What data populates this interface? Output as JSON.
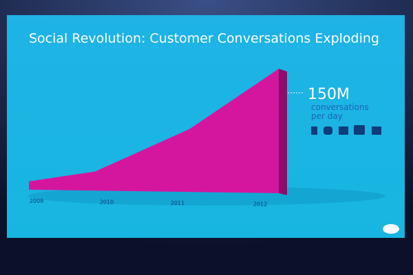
{
  "chart_data": {
    "type": "area",
    "title": "Social Revolution: Customer Conversations Exploding",
    "categories": [
      "2009",
      "2010",
      "2011",
      "2012"
    ],
    "values": [
      12,
      24,
      76,
      150
    ],
    "value_labels": [
      null,
      null,
      null,
      "150M"
    ],
    "annotation": "conversations per day",
    "color": "#d4169e"
  }
}
